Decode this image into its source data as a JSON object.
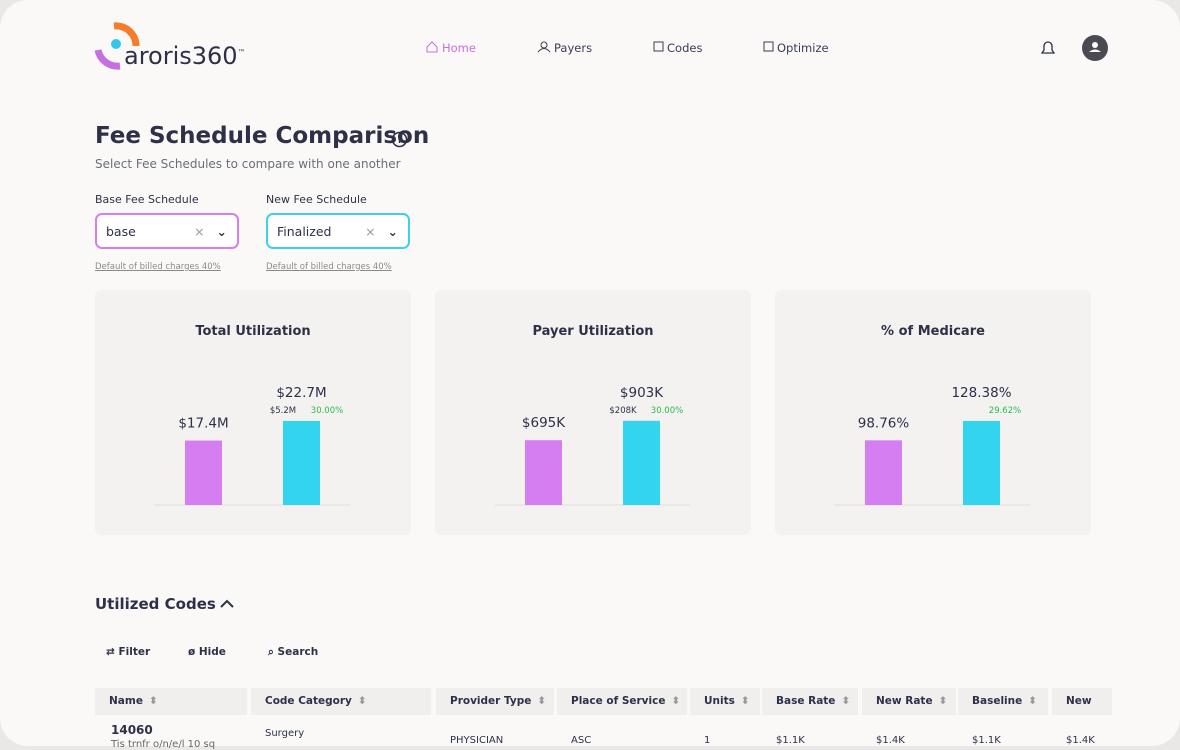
{
  "nav": {
    "logo": "aroris360",
    "logo_mark": "™",
    "items": [
      "Home",
      "Payers",
      "Codes",
      "Optimize"
    ]
  },
  "header": {
    "title": "Fee Schedule Comparison",
    "subtitle": "Select Fee Schedules to compare with one another"
  },
  "form": {
    "fields": [
      {
        "label": "Base Fee Schedule",
        "value": "base",
        "hint": "Default of billed charges 40%"
      },
      {
        "label": "New Fee Schedule",
        "value": "Finalized",
        "hint": "Default of billed charges 40%"
      }
    ]
  },
  "cards": [
    {
      "title": "Total Utilization",
      "values": [
        17400000,
        22700000
      ],
      "value_labels": [
        "$17.4M",
        "$22.7M"
      ],
      "change": "$5.2M",
      "change_pct": "30.00%",
      "ylim": [
        0,
        29700000
      ],
      "colors": [
        "#d57ef2",
        "#33d4ee"
      ]
    },
    {
      "title": "Payer Utilization",
      "values": [
        695000,
        903000
      ],
      "value_labels": [
        "$695K",
        "$903K"
      ],
      "change": "$208K",
      "change_pct": "30.00%",
      "ylim": [
        0,
        1180000
      ],
      "colors": [
        "#d57ef2",
        "#33d4ee"
      ]
    },
    {
      "title": "% of Medicare",
      "values": [
        98.76,
        128.38
      ],
      "value_labels": [
        "98.76%",
        "128.38%"
      ],
      "change_pct": "29.62%",
      "ylim": [
        0,
        168
      ],
      "colors": [
        "#d57ef2",
        "#33d4ee"
      ]
    }
  ],
  "section": {
    "title": "Utilized Codes",
    "tools": [
      "Filter",
      "Hide",
      "Search"
    ]
  },
  "table": {
    "headers": [
      "Name",
      "Code Category",
      "Provider Type",
      "Place of Service",
      "Units",
      "Base Rate",
      "New Rate",
      "Baseline",
      "New"
    ],
    "rows": [
      [
        "14060",
        "Surgery",
        "PHYSICIAN",
        "ASC",
        "1",
        "$1.1K",
        "$1.4K",
        "$1.1K",
        "$1.4K"
      ]
    ],
    "row_sub": [
      "Tis trnfr o/n/e/l 10 sq"
    ]
  }
}
